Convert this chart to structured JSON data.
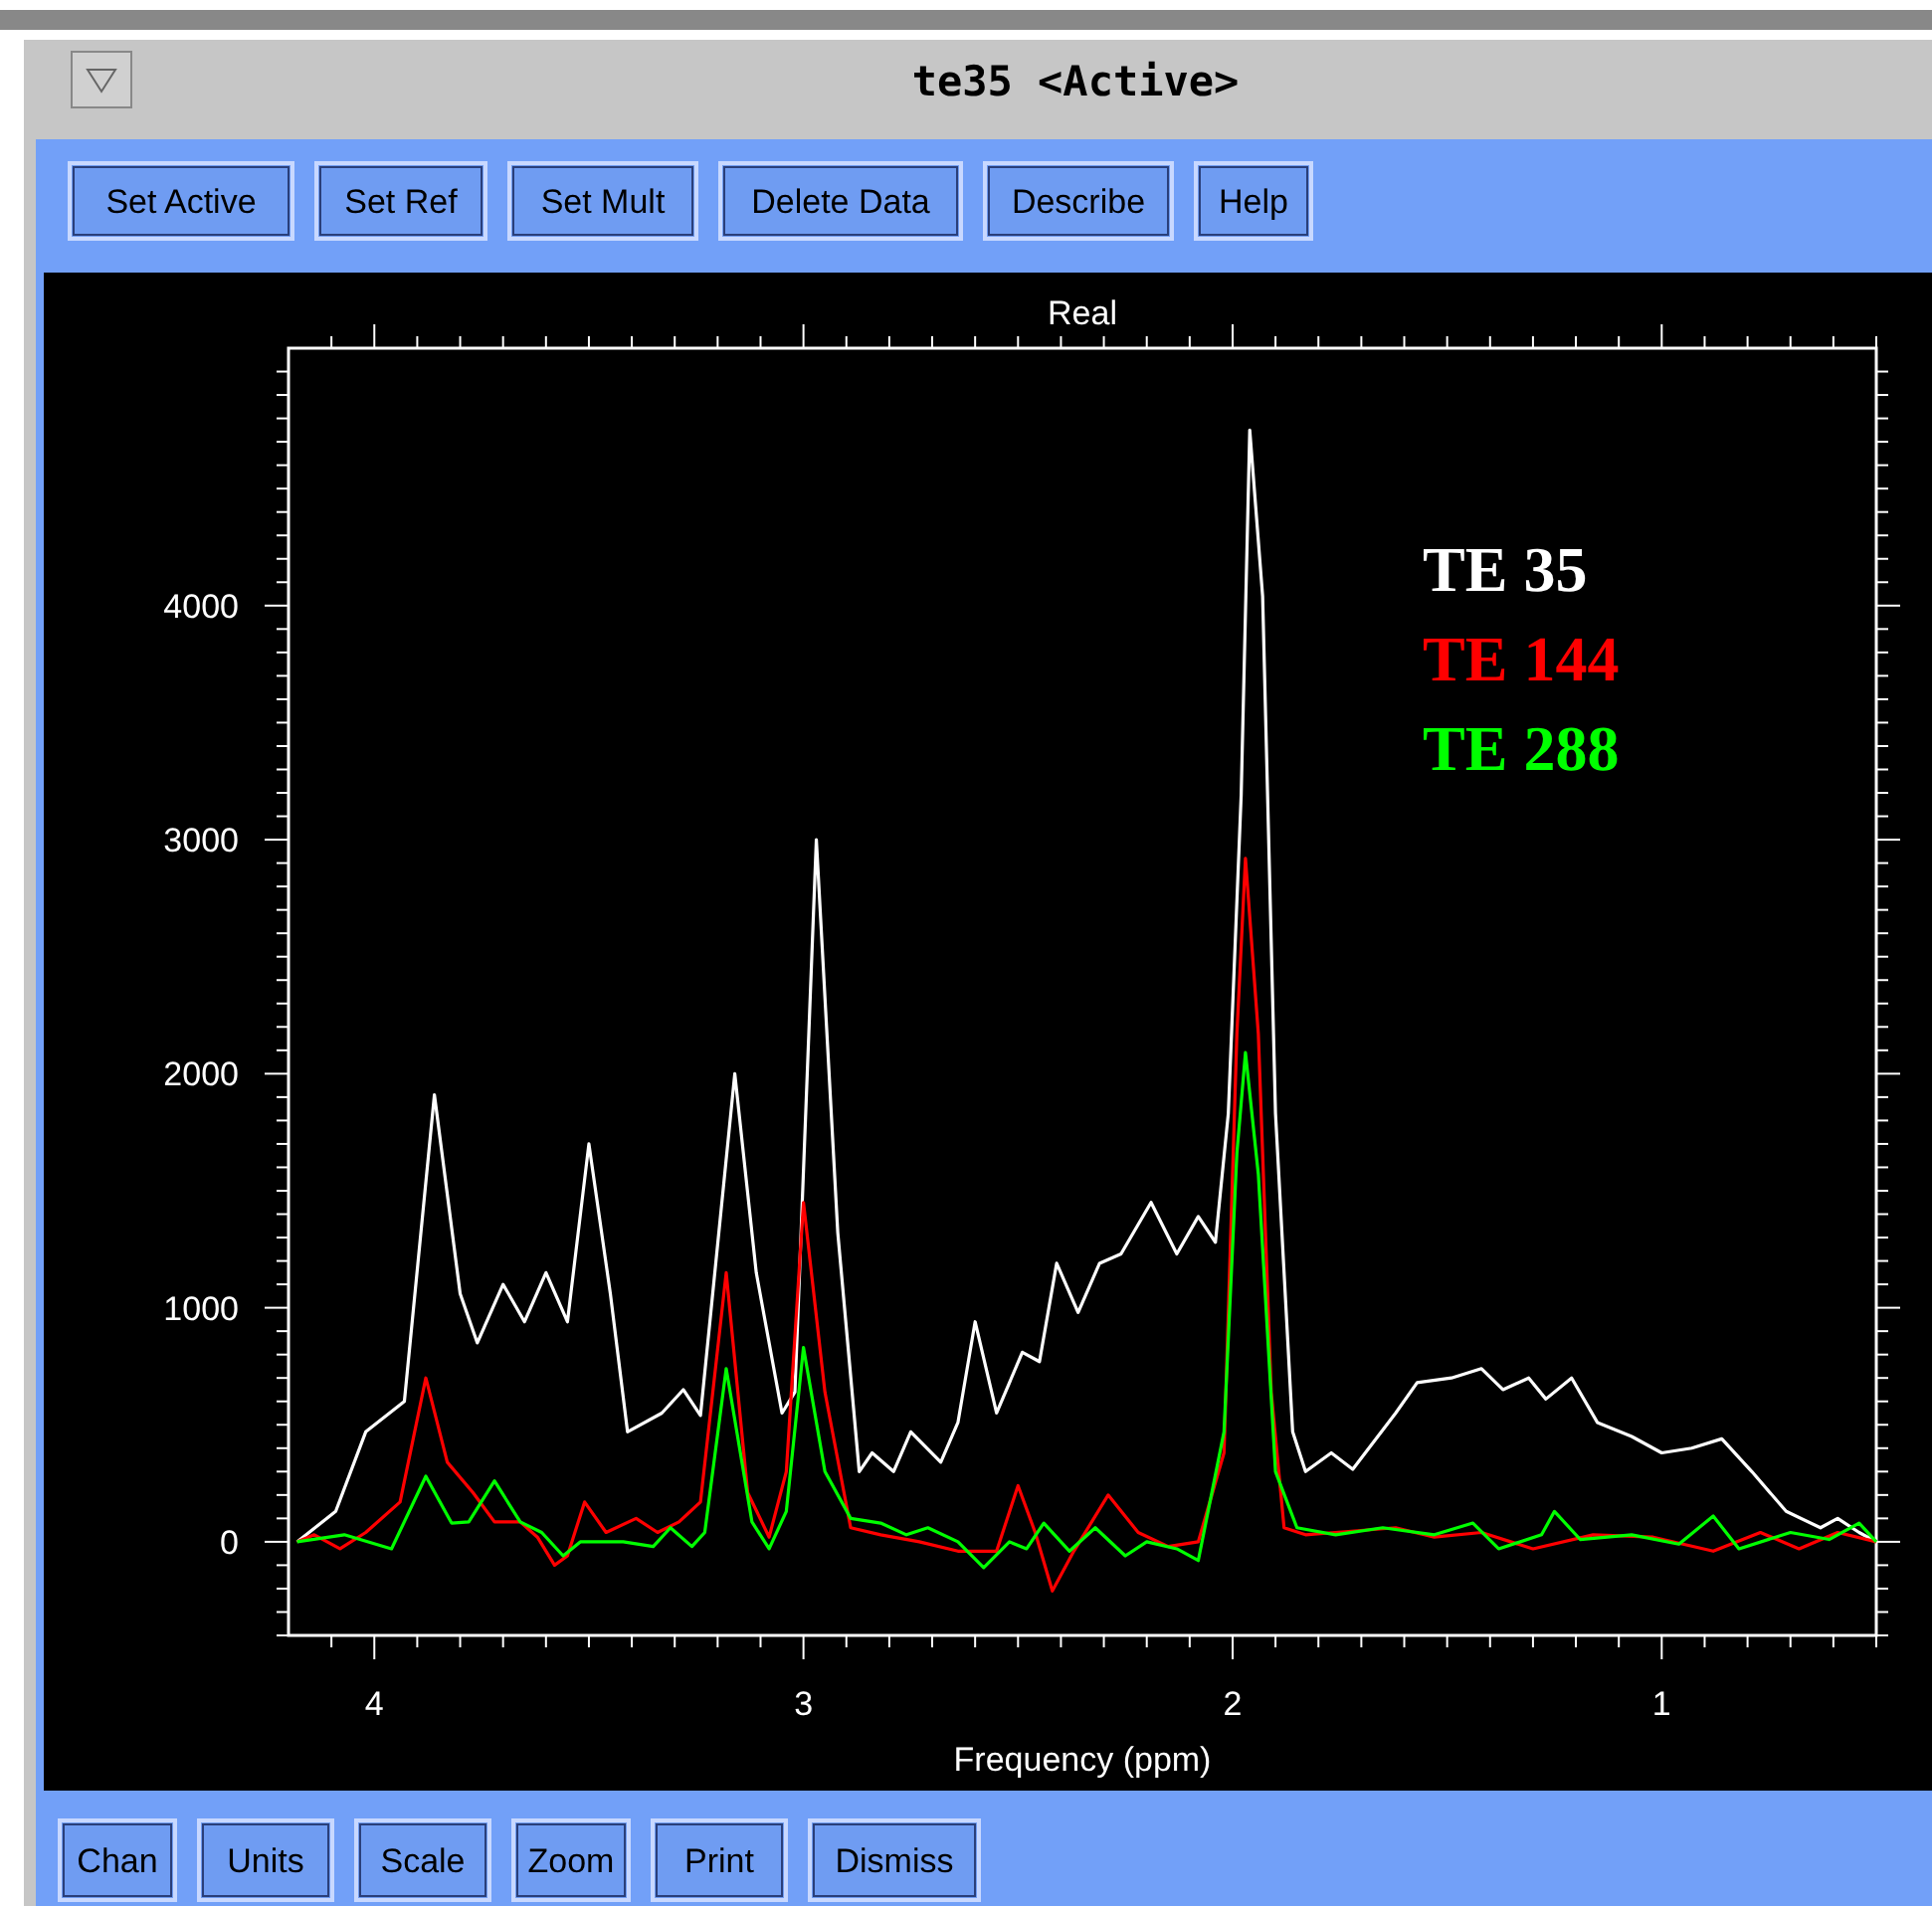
{
  "chart_data": {
    "type": "line",
    "title": "te35 <Active>",
    "subtitle": "Real",
    "xlabel": "Frequency (ppm)",
    "annotations": [
      "Set Active",
      "Set Ref",
      "Set Mult",
      "Delete Data",
      "Describe",
      "Help",
      "Chan",
      "Units",
      "Scale",
      "Zoom",
      "Print",
      "Dismiss"
    ],
    "xlim": [
      4.2,
      0.5
    ],
    "ylim": [
      -400,
      5100
    ],
    "xticks": [
      {
        "value": 0.5,
        "label": null
      },
      {
        "value": 0.6,
        "label": null
      },
      {
        "value": 0.7,
        "label": null
      },
      {
        "value": 0.8,
        "label": null
      },
      {
        "value": 0.9,
        "label": null
      },
      1,
      {
        "value": 1.1,
        "label": null
      },
      {
        "value": 1.2,
        "label": null
      },
      {
        "value": 1.3,
        "label": null
      },
      {
        "value": 1.4,
        "label": null
      },
      {
        "value": 1.5,
        "label": null
      },
      {
        "value": 1.6,
        "label": null
      },
      {
        "value": 1.7,
        "label": null
      },
      {
        "value": 1.8,
        "label": null
      },
      {
        "value": 1.9,
        "label": null
      },
      2,
      {
        "value": 2.1,
        "label": null
      },
      {
        "value": 2.2,
        "label": null
      },
      {
        "value": 2.3,
        "label": null
      },
      {
        "value": 2.4,
        "label": null
      },
      {
        "value": 2.5,
        "label": null
      },
      {
        "value": 2.6,
        "label": null
      },
      {
        "value": 2.7,
        "label": null
      },
      {
        "value": 2.8,
        "label": null
      },
      {
        "value": 2.9,
        "label": null
      },
      3,
      {
        "value": 3.1,
        "label": null
      },
      {
        "value": 3.2,
        "label": null
      },
      {
        "value": 3.3,
        "label": null
      },
      {
        "value": 3.4,
        "label": null
      },
      {
        "value": 3.5,
        "label": null
      },
      {
        "value": 3.6,
        "label": null
      },
      {
        "value": 3.7,
        "label": null
      },
      {
        "value": 3.8,
        "label": null
      },
      {
        "value": 3.9,
        "label": null
      },
      4,
      {
        "value": 4.1,
        "label": null
      }
    ],
    "yticks": [
      {
        "value": -400,
        "label": null
      },
      {
        "value": -300,
        "label": null
      },
      {
        "value": -200,
        "label": null
      },
      {
        "value": -100,
        "label": null
      },
      0,
      {
        "value": 100,
        "label": null
      },
      {
        "value": 200,
        "label": null
      },
      {
        "value": 300,
        "label": null
      },
      {
        "value": 400,
        "label": null
      },
      {
        "value": 500,
        "label": null
      },
      {
        "value": 600,
        "label": null
      },
      {
        "value": 700,
        "label": null
      },
      {
        "value": 800,
        "label": null
      },
      {
        "value": 900,
        "label": null
      },
      1000,
      {
        "value": 1100,
        "label": null
      },
      {
        "value": 1200,
        "label": null
      },
      {
        "value": 1300,
        "label": null
      },
      {
        "value": 1400,
        "label": null
      },
      {
        "value": 1500,
        "label": null
      },
      {
        "value": 1600,
        "label": null
      },
      {
        "value": 1700,
        "label": null
      },
      {
        "value": 1800,
        "label": null
      },
      {
        "value": 1900,
        "label": null
      },
      2000,
      {
        "value": 2100,
        "label": null
      },
      {
        "value": 2200,
        "label": null
      },
      {
        "value": 2300,
        "label": null
      },
      {
        "value": 2400,
        "label": null
      },
      {
        "value": 2500,
        "label": null
      },
      {
        "value": 2600,
        "label": null
      },
      {
        "value": 2700,
        "label": null
      },
      {
        "value": 2800,
        "label": null
      },
      {
        "value": 2900,
        "label": null
      },
      3000,
      {
        "value": 3100,
        "label": null
      },
      {
        "value": 3200,
        "label": null
      },
      {
        "value": 3300,
        "label": null
      },
      {
        "value": 3400,
        "label": null
      },
      {
        "value": 3500,
        "label": null
      },
      {
        "value": 3600,
        "label": null
      },
      {
        "value": 3700,
        "label": null
      },
      {
        "value": 3800,
        "label": null
      },
      {
        "value": 3900,
        "label": null
      },
      4000,
      {
        "value": 4100,
        "label": null
      },
      {
        "value": 4200,
        "label": null
      },
      {
        "value": 4300,
        "label": null
      },
      {
        "value": 4400,
        "label": null
      },
      {
        "value": 4500,
        "label": null
      },
      {
        "value": 4600,
        "label": null
      },
      {
        "value": 4700,
        "label": null
      },
      {
        "value": 4800,
        "label": null
      },
      {
        "value": 4900,
        "label": null
      },
      {
        "value": 5000,
        "label": null
      }
    ],
    "legend": "top right",
    "line_style": "solid",
    "series": [
      {
        "name": "TE 35",
        "color": "#ffffff",
        "x": [
          4.18,
          4.09,
          4.02,
          3.93,
          3.86,
          3.8,
          3.76,
          3.7,
          3.65,
          3.6,
          3.55,
          3.5,
          3.45,
          3.41,
          3.33,
          3.28,
          3.24,
          3.16,
          3.11,
          3.05,
          3.02,
          2.97,
          2.92,
          2.87,
          2.84,
          2.79,
          2.75,
          2.68,
          2.64,
          2.6,
          2.55,
          2.49,
          2.45,
          2.41,
          2.36,
          2.31,
          2.26,
          2.19,
          2.13,
          2.08,
          2.04,
          2.01,
          1.98,
          1.96,
          1.93,
          1.9,
          1.86,
          1.83,
          1.77,
          1.72,
          1.62,
          1.57,
          1.49,
          1.42,
          1.37,
          1.31,
          1.27,
          1.21,
          1.15,
          1.07,
          1.0,
          0.93,
          0.86,
          0.79,
          0.71,
          0.63,
          0.59,
          0.54,
          0.5
        ],
        "values": [
          0,
          130,
          470,
          600,
          1910,
          1060,
          850,
          1100,
          940,
          1150,
          940,
          1700,
          1060,
          470,
          550,
          650,
          540,
          2000,
          1150,
          550,
          640,
          3000,
          1320,
          300,
          380,
          300,
          470,
          340,
          510,
          940,
          550,
          810,
          770,
          1190,
          980,
          1190,
          1230,
          1450,
          1230,
          1390,
          1280,
          1830,
          3190,
          4750,
          4040,
          1830,
          470,
          300,
          380,
          310,
          550,
          680,
          700,
          740,
          650,
          700,
          610,
          700,
          510,
          450,
          380,
          400,
          440,
          300,
          130,
          60,
          100,
          40,
          0
        ]
      },
      {
        "name": "TE 144",
        "color": "#ff0000",
        "x": [
          4.18,
          4.14,
          4.08,
          4.02,
          3.94,
          3.88,
          3.83,
          3.77,
          3.72,
          3.66,
          3.62,
          3.58,
          3.55,
          3.51,
          3.46,
          3.39,
          3.34,
          3.29,
          3.24,
          3.18,
          3.13,
          3.08,
          3.04,
          3.0,
          2.95,
          2.89,
          2.82,
          2.73,
          2.64,
          2.55,
          2.5,
          2.46,
          2.42,
          2.37,
          2.29,
          2.22,
          2.15,
          2.08,
          2.02,
          1.99,
          1.97,
          1.94,
          1.91,
          1.88,
          1.83,
          1.76,
          1.62,
          1.53,
          1.42,
          1.3,
          1.16,
          1.02,
          0.88,
          0.77,
          0.68,
          0.59,
          0.5
        ],
        "values": [
          0,
          30,
          -30,
          40,
          170,
          700,
          340,
          210,
          85,
          85,
          20,
          -100,
          -60,
          170,
          40,
          100,
          40,
          85,
          170,
          1150,
          210,
          20,
          300,
          1450,
          640,
          60,
          30,
          0,
          -40,
          -40,
          240,
          40,
          -210,
          -40,
          200,
          40,
          -20,
          0,
          380,
          2170,
          2920,
          2170,
          640,
          60,
          30,
          40,
          60,
          20,
          40,
          -30,
          30,
          20,
          -40,
          40,
          -30,
          40,
          0
        ]
      },
      {
        "name": "TE 288",
        "color": "#00ff00",
        "x": [
          4.18,
          4.07,
          3.96,
          3.88,
          3.82,
          3.78,
          3.72,
          3.66,
          3.61,
          3.56,
          3.52,
          3.42,
          3.35,
          3.31,
          3.26,
          3.23,
          3.18,
          3.12,
          3.08,
          3.04,
          3.0,
          2.95,
          2.89,
          2.82,
          2.76,
          2.71,
          2.64,
          2.58,
          2.52,
          2.48,
          2.44,
          2.38,
          2.32,
          2.25,
          2.2,
          2.13,
          2.08,
          2.02,
          1.99,
          1.97,
          1.94,
          1.9,
          1.85,
          1.76,
          1.65,
          1.53,
          1.44,
          1.38,
          1.28,
          1.25,
          1.19,
          1.07,
          0.96,
          0.88,
          0.82,
          0.7,
          0.61,
          0.54,
          0.5
        ],
        "values": [
          0,
          30,
          -30,
          280,
          80,
          85,
          260,
          85,
          40,
          -60,
          0,
          0,
          -20,
          60,
          -20,
          40,
          740,
          85,
          -30,
          130,
          830,
          300,
          100,
          80,
          30,
          60,
          0,
          -110,
          0,
          -30,
          80,
          -40,
          60,
          -60,
          0,
          -30,
          -80,
          470,
          1660,
          2090,
          1570,
          300,
          60,
          30,
          60,
          30,
          80,
          -30,
          30,
          130,
          10,
          30,
          -10,
          110,
          -30,
          40,
          10,
          80,
          0
        ]
      }
    ]
  }
}
